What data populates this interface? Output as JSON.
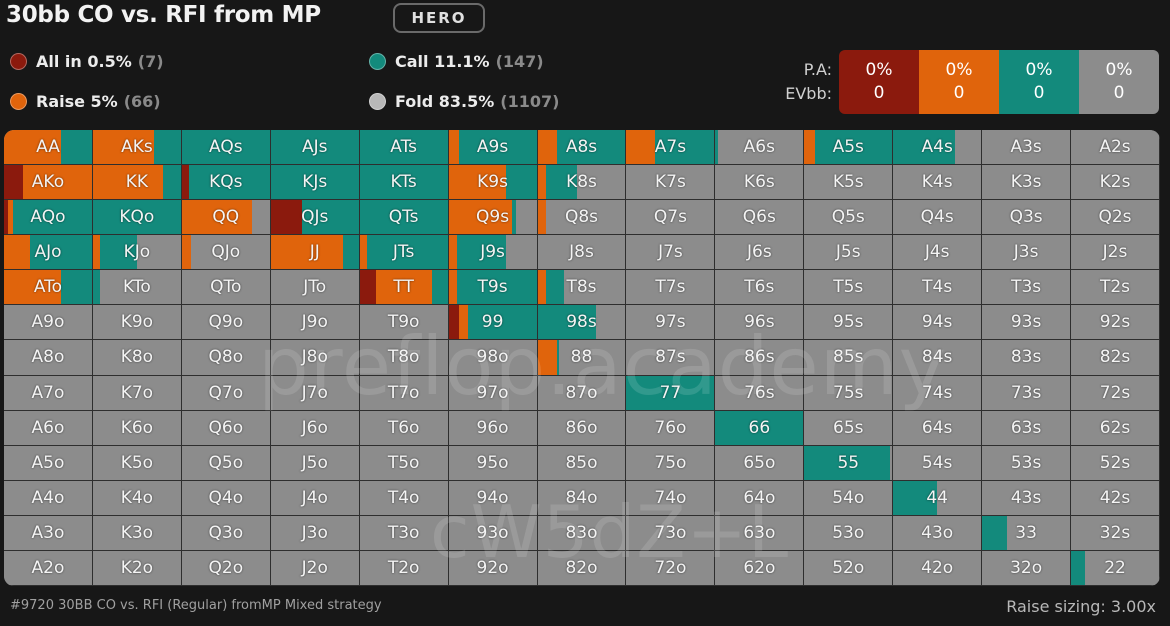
{
  "header": {
    "title": "30bb CO vs. RFI from MP",
    "badge": "HERO"
  },
  "legend": [
    {
      "label": "All in 0.5%",
      "count": "(7)",
      "color": "#8b1a0d"
    },
    {
      "label": "Raise 5%",
      "count": "(66)",
      "color": "#e0640c"
    },
    {
      "label": "Call 11.1%",
      "count": "(147)",
      "color": "#138a7c"
    },
    {
      "label": "Fold 83.5%",
      "count": "(1107)",
      "color": "#b8b8b8"
    }
  ],
  "summary": {
    "row_labels": [
      "P.A:",
      "EVbb:"
    ],
    "boxes": [
      {
        "pa": "0%",
        "ev": "0",
        "color": "#8b1a0d"
      },
      {
        "pa": "0%",
        "ev": "0",
        "color": "#e0640c"
      },
      {
        "pa": "0%",
        "ev": "0",
        "color": "#138a7c"
      },
      {
        "pa": "0%",
        "ev": "0",
        "color": "#8c8c8c"
      }
    ]
  },
  "colors": {
    "allin": "#8b1a0d",
    "raise": "#e0640c",
    "call": "#138a7c",
    "fold": "#8c8c8c"
  },
  "hands": [
    [
      "AA",
      "AKs",
      "AQs",
      "AJs",
      "ATs",
      "A9s",
      "A8s",
      "A7s",
      "A6s",
      "A5s",
      "A4s",
      "A3s",
      "A2s"
    ],
    [
      "AKo",
      "KK",
      "KQs",
      "KJs",
      "KTs",
      "K9s",
      "K8s",
      "K7s",
      "K6s",
      "K5s",
      "K4s",
      "K3s",
      "K2s"
    ],
    [
      "AQo",
      "KQo",
      "QQ",
      "QJs",
      "QTs",
      "Q9s",
      "Q8s",
      "Q7s",
      "Q6s",
      "Q5s",
      "Q4s",
      "Q3s",
      "Q2s"
    ],
    [
      "AJo",
      "KJo",
      "QJo",
      "JJ",
      "JTs",
      "J9s",
      "J8s",
      "J7s",
      "J6s",
      "J5s",
      "J4s",
      "J3s",
      "J2s"
    ],
    [
      "ATo",
      "KTo",
      "QTo",
      "JTo",
      "TT",
      "T9s",
      "T8s",
      "T7s",
      "T6s",
      "T5s",
      "T4s",
      "T3s",
      "T2s"
    ],
    [
      "A9o",
      "K9o",
      "Q9o",
      "J9o",
      "T9o",
      "99",
      "98s",
      "97s",
      "96s",
      "95s",
      "94s",
      "93s",
      "92s"
    ],
    [
      "A8o",
      "K8o",
      "Q8o",
      "J8o",
      "T8o",
      "98o",
      "88",
      "87s",
      "86s",
      "85s",
      "84s",
      "83s",
      "82s"
    ],
    [
      "A7o",
      "K7o",
      "Q7o",
      "J7o",
      "T7o",
      "97o",
      "87o",
      "77",
      "76s",
      "75s",
      "74s",
      "73s",
      "72s"
    ],
    [
      "A6o",
      "K6o",
      "Q6o",
      "J6o",
      "T6o",
      "96o",
      "86o",
      "76o",
      "66",
      "65s",
      "64s",
      "63s",
      "62s"
    ],
    [
      "A5o",
      "K5o",
      "Q5o",
      "J5o",
      "T5o",
      "95o",
      "85o",
      "75o",
      "65o",
      "55",
      "54s",
      "53s",
      "52s"
    ],
    [
      "A4o",
      "K4o",
      "Q4o",
      "J4o",
      "T4o",
      "94o",
      "84o",
      "74o",
      "64o",
      "54o",
      "44",
      "43s",
      "42s"
    ],
    [
      "A3o",
      "K3o",
      "Q3o",
      "J3o",
      "T3o",
      "93o",
      "83o",
      "73o",
      "63o",
      "53o",
      "43o",
      "33",
      "32s"
    ],
    [
      "A2o",
      "K2o",
      "Q2o",
      "J2o",
      "T2o",
      "92o",
      "82o",
      "72o",
      "62o",
      "52o",
      "42o",
      "32o",
      "22"
    ]
  ],
  "strategies": {
    "AA": {
      "allin": 0,
      "raise": 0.65,
      "call": 0.35
    },
    "AKs": {
      "allin": 0,
      "raise": 0.7,
      "call": 0.3
    },
    "AQs": {
      "allin": 0,
      "raise": 0,
      "call": 1
    },
    "AJs": {
      "allin": 0,
      "raise": 0,
      "call": 1
    },
    "ATs": {
      "allin": 0,
      "raise": 0,
      "call": 1
    },
    "A9s": {
      "allin": 0,
      "raise": 0.12,
      "call": 0.88
    },
    "A8s": {
      "allin": 0,
      "raise": 0.22,
      "call": 0.78
    },
    "A7s": {
      "allin": 0,
      "raise": 0.33,
      "call": 0.67
    },
    "A6s": {
      "allin": 0,
      "raise": 0,
      "call": 0.03
    },
    "A5s": {
      "allin": 0,
      "raise": 0.12,
      "call": 0.88
    },
    "A4s": {
      "allin": 0,
      "raise": 0,
      "call": 0.7
    },
    "AKo": {
      "allin": 0.22,
      "raise": 0.78,
      "call": 0
    },
    "KK": {
      "allin": 0,
      "raise": 0.8,
      "call": 0.2
    },
    "KQs": {
      "allin": 0.08,
      "raise": 0,
      "call": 0.92
    },
    "KJs": {
      "allin": 0,
      "raise": 0,
      "call": 1
    },
    "KTs": {
      "allin": 0,
      "raise": 0,
      "call": 1
    },
    "K9s": {
      "allin": 0,
      "raise": 0.65,
      "call": 0.35
    },
    "K8s": {
      "allin": 0,
      "raise": 0.1,
      "call": 0.35
    },
    "AQo": {
      "allin": 0.04,
      "raise": 0.06,
      "call": 0.9
    },
    "KQo": {
      "allin": 0,
      "raise": 0,
      "call": 1
    },
    "QQ": {
      "allin": 0,
      "raise": 0.8,
      "call": 0
    },
    "QJs": {
      "allin": 0.35,
      "raise": 0,
      "call": 0.65
    },
    "QTs": {
      "allin": 0,
      "raise": 0,
      "call": 1
    },
    "Q9s": {
      "allin": 0,
      "raise": 0.72,
      "call": 0.05
    },
    "Q8s": {
      "allin": 0,
      "raise": 0.1,
      "call": 0
    },
    "AJo": {
      "allin": 0,
      "raise": 0.3,
      "call": 0.7
    },
    "KJo": {
      "allin": 0,
      "raise": 0.08,
      "call": 0.42
    },
    "QJo": {
      "allin": 0,
      "raise": 0.1,
      "call": 0
    },
    "JJ": {
      "allin": 0,
      "raise": 0.82,
      "call": 0.18
    },
    "JTs": {
      "allin": 0,
      "raise": 0.08,
      "call": 0.92
    },
    "J9s": {
      "allin": 0,
      "raise": 0.1,
      "call": 0.55
    },
    "ATo": {
      "allin": 0,
      "raise": 0.65,
      "call": 0.35
    },
    "KTo": {
      "allin": 0,
      "raise": 0,
      "call": 0.08
    },
    "TT": {
      "allin": 0.18,
      "raise": 0.64,
      "call": 0.18
    },
    "T9s": {
      "allin": 0,
      "raise": 0.1,
      "call": 0.9
    },
    "T8s": {
      "allin": 0,
      "raise": 0.1,
      "call": 0.2
    },
    "99": {
      "allin": 0.12,
      "raise": 0.1,
      "call": 0.78
    },
    "98s": {
      "allin": 0,
      "raise": 0,
      "call": 0.66
    },
    "88": {
      "allin": 0,
      "raise": 0.22,
      "call": 0.03
    },
    "77": {
      "allin": 0,
      "raise": 0,
      "call": 1
    },
    "66": {
      "allin": 0,
      "raise": 0,
      "call": 1
    },
    "55": {
      "allin": 0,
      "raise": 0,
      "call": 0.98
    },
    "44": {
      "allin": 0,
      "raise": 0,
      "call": 0.5
    },
    "33": {
      "allin": 0,
      "raise": 0,
      "call": 0.28
    },
    "22": {
      "allin": 0,
      "raise": 0,
      "call": 0.16
    }
  },
  "watermarks": [
    "preflop.academy",
    "cW5dZ+L"
  ],
  "footer": {
    "left": "#9720 30BB CO vs. RFI (Regular) fromMP Mixed strategy",
    "right": "Raise sizing: 3.00x"
  }
}
